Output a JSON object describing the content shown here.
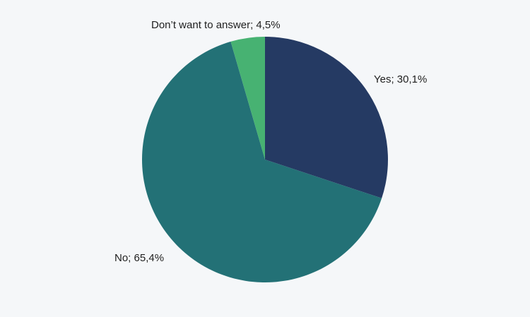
{
  "chart_data": {
    "type": "pie",
    "categories": [
      "Yes",
      "No",
      "Don’t want to answer"
    ],
    "values": [
      30.1,
      65.4,
      4.5
    ],
    "labels": [
      "Yes; 30,1%",
      "No; 65,4%",
      "Don’t want to answer; 4,5%"
    ],
    "colors": [
      "#253a63",
      "#237176",
      "#47b272"
    ],
    "start": "12 o'clock",
    "direction": "clockwise",
    "legend": "none"
  }
}
